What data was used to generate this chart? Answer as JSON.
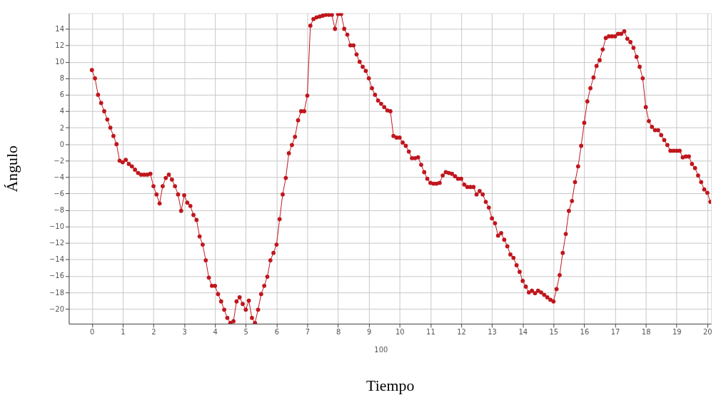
{
  "chart_data": {
    "type": "line",
    "xlabel": "Tiempo",
    "ylabel": "Ángulo",
    "annotations": [
      "100"
    ],
    "xlim": [
      -0.75,
      20.12
    ],
    "xticks": [
      0,
      1,
      2,
      3,
      4,
      5,
      6,
      7,
      8,
      9,
      10,
      11,
      12,
      13,
      14,
      15,
      16,
      17,
      18,
      19,
      20
    ],
    "ylim": [
      -21.8,
      15.9
    ],
    "yticks": [
      -20,
      -18,
      -16,
      -14,
      -12,
      -10,
      -8,
      -6,
      -4,
      -2,
      0,
      2,
      4,
      6,
      8,
      10,
      12,
      14
    ],
    "grid": true,
    "marker": "circle",
    "line_style": "solid",
    "series": [
      {
        "color": "#c0161c",
        "x": [
          0,
          0.1,
          0.2,
          0.3,
          0.4,
          0.5,
          0.6,
          0.7,
          0.8,
          0.9,
          1.0,
          1.1,
          1.2,
          1.3,
          1.4,
          1.5,
          1.6,
          1.7,
          1.8,
          1.9,
          2.0,
          2.1,
          2.2,
          2.3,
          2.4,
          2.5,
          2.6,
          2.7,
          2.8,
          2.9,
          3.0,
          3.1,
          3.2,
          3.3,
          3.4,
          3.5,
          3.6,
          3.7,
          3.8,
          3.9,
          4.0,
          4.1,
          4.2,
          4.3,
          4.4,
          4.5,
          4.6,
          4.7,
          4.8,
          4.9,
          5.0,
          5.1,
          5.2,
          5.3,
          5.4,
          5.5,
          5.6,
          5.7,
          5.8,
          5.9,
          6.0,
          6.1,
          6.2,
          6.3,
          6.4,
          6.5,
          6.6,
          6.7,
          6.8,
          6.9,
          7.0,
          7.1,
          7.2,
          7.3,
          7.4,
          7.5,
          7.6,
          7.7,
          7.8,
          7.9,
          8.0,
          8.1,
          8.2,
          8.3,
          8.4,
          8.5,
          8.6,
          8.7,
          8.8,
          8.9,
          9.0,
          9.1,
          9.2,
          9.3,
          9.4,
          9.5,
          9.6,
          9.7,
          9.8,
          9.9,
          10.0,
          10.1,
          10.2,
          10.3,
          10.4,
          10.5,
          10.6,
          10.7,
          10.8,
          10.9,
          11.0,
          11.1,
          11.2,
          11.3,
          11.4,
          11.5,
          11.6,
          11.7,
          11.8,
          11.9,
          12.0,
          12.1,
          12.2,
          12.3,
          12.4,
          12.5,
          12.6,
          12.7,
          12.8,
          12.9,
          13.0,
          13.1,
          13.2,
          13.3,
          13.4,
          13.5,
          13.6,
          13.7,
          13.8,
          13.9,
          14.0,
          14.1,
          14.2,
          14.3,
          14.4,
          14.5,
          14.6,
          14.7,
          14.8,
          14.9,
          15.0,
          15.1,
          15.2,
          15.3,
          15.4,
          15.5,
          15.6,
          15.7,
          15.8,
          15.9,
          16.0,
          16.1,
          16.2,
          16.3,
          16.4,
          16.5,
          16.6,
          16.7,
          16.8,
          16.9,
          17.0,
          17.1,
          17.2,
          17.3,
          17.4,
          17.5,
          17.6,
          17.7,
          17.8,
          17.9,
          18.0,
          18.1,
          18.2,
          18.3,
          18.4,
          18.5,
          18.6,
          18.7,
          18.8,
          18.9,
          19.0,
          19.1,
          19.2,
          19.3,
          19.4,
          19.5,
          19.6,
          19.7,
          19.8,
          19.9,
          20.0,
          20.1
        ],
        "values": [
          9,
          8,
          6,
          5,
          4,
          3,
          2,
          1,
          0,
          -2,
          -2.2,
          -1.9,
          -2.4,
          -2.7,
          -3.1,
          -3.5,
          -3.7,
          -3.7,
          -3.7,
          -3.6,
          -5.1,
          -6.1,
          -7.2,
          -5.1,
          -4.1,
          -3.7,
          -4.3,
          -5.1,
          -6.1,
          -8.1,
          -6.2,
          -7.1,
          -7.5,
          -8.6,
          -9.2,
          -11.2,
          -12.2,
          -14.1,
          -16.2,
          -17.2,
          -17.2,
          -18.2,
          -19.1,
          -20.1,
          -21.1,
          -21.7,
          -21.5,
          -19.1,
          -18.6,
          -19.4,
          -20.1,
          -19.0,
          -21.1,
          -21.7,
          -20.1,
          -18.2,
          -17.2,
          -16.1,
          -14.1,
          -13.2,
          -12.2,
          -9.1,
          -6.1,
          -4.1,
          -1.1,
          -0.1,
          0.9,
          2.9,
          4.0,
          4.0,
          5.9,
          14.4,
          15.2,
          15.4,
          15.5,
          15.6,
          15.7,
          15.7,
          15.7,
          14.0,
          15.8,
          15.8,
          14.0,
          13.3,
          12.0,
          12.0,
          10.9,
          10.0,
          9.4,
          8.9,
          8.0,
          6.8,
          6.0,
          5.3,
          4.9,
          4.5,
          4.1,
          4.0,
          1.0,
          0.8,
          0.8,
          0.2,
          -0.2,
          -0.9,
          -1.7,
          -1.7,
          -1.6,
          -2.5,
          -3.4,
          -4.2,
          -4.7,
          -4.8,
          -4.8,
          -4.7,
          -3.8,
          -3.4,
          -3.5,
          -3.6,
          -3.9,
          -4.2,
          -4.2,
          -4.9,
          -5.2,
          -5.2,
          -5.2,
          -6.1,
          -5.7,
          -6.1,
          -7.0,
          -7.7,
          -9.0,
          -9.6,
          -11.1,
          -10.8,
          -11.6,
          -12.4,
          -13.4,
          -13.8,
          -14.7,
          -15.5,
          -16.6,
          -17.3,
          -18.0,
          -17.8,
          -18.1,
          -17.8,
          -18.0,
          -18.3,
          -18.6,
          -18.9,
          -19.1,
          -17.6,
          -15.9,
          -13.2,
          -10.9,
          -8.1,
          -6.9,
          -4.6,
          -2.7,
          -0.2,
          2.6,
          5.2,
          6.8,
          8.1,
          9.5,
          10.2,
          11.5,
          12.9,
          13.1,
          13.1,
          13.1,
          13.4,
          13.4,
          13.7,
          12.8,
          12.4,
          11.7,
          10.6,
          9.4,
          8.0,
          4.5,
          2.8,
          2.1,
          1.7,
          1.7,
          1.1,
          0.5,
          -0.1,
          -0.8,
          -0.8,
          -0.8,
          -0.8,
          -1.6,
          -1.5,
          -1.5,
          -2.4,
          -2.9,
          -3.8,
          -4.6,
          -5.5,
          -5.9,
          -7.0
        ]
      }
    ]
  }
}
